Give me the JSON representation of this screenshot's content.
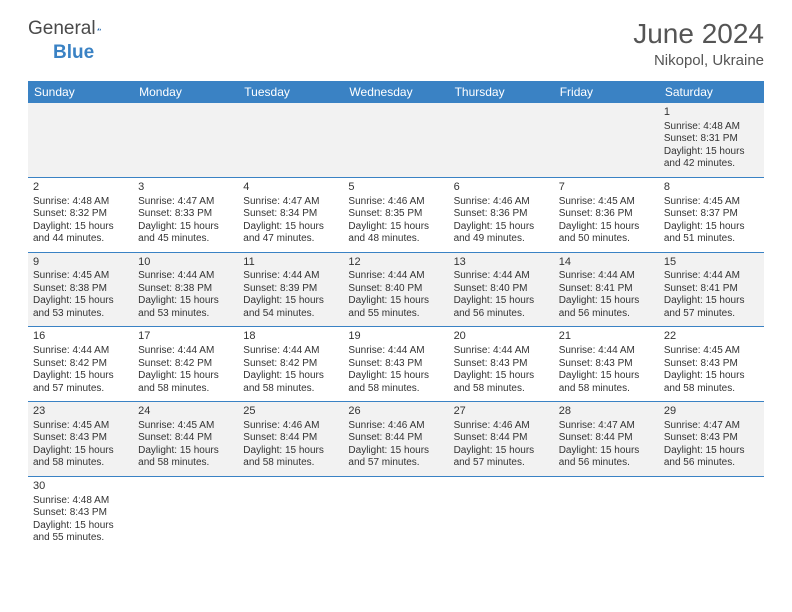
{
  "logo": {
    "text1": "General",
    "text2": "Blue",
    "icon_color": "#2f6fb0"
  },
  "title": "June 2024",
  "location": "Nikopol, Ukraine",
  "columns": [
    "Sunday",
    "Monday",
    "Tuesday",
    "Wednesday",
    "Thursday",
    "Friday",
    "Saturday"
  ],
  "header_bg": "#3a82c4",
  "weeks": [
    [
      null,
      null,
      null,
      null,
      null,
      null,
      {
        "d": "1",
        "sr": "4:48 AM",
        "ss": "8:31 PM",
        "dl": "15 hours and 42 minutes."
      }
    ],
    [
      {
        "d": "2",
        "sr": "4:48 AM",
        "ss": "8:32 PM",
        "dl": "15 hours and 44 minutes."
      },
      {
        "d": "3",
        "sr": "4:47 AM",
        "ss": "8:33 PM",
        "dl": "15 hours and 45 minutes."
      },
      {
        "d": "4",
        "sr": "4:47 AM",
        "ss": "8:34 PM",
        "dl": "15 hours and 47 minutes."
      },
      {
        "d": "5",
        "sr": "4:46 AM",
        "ss": "8:35 PM",
        "dl": "15 hours and 48 minutes."
      },
      {
        "d": "6",
        "sr": "4:46 AM",
        "ss": "8:36 PM",
        "dl": "15 hours and 49 minutes."
      },
      {
        "d": "7",
        "sr": "4:45 AM",
        "ss": "8:36 PM",
        "dl": "15 hours and 50 minutes."
      },
      {
        "d": "8",
        "sr": "4:45 AM",
        "ss": "8:37 PM",
        "dl": "15 hours and 51 minutes."
      }
    ],
    [
      {
        "d": "9",
        "sr": "4:45 AM",
        "ss": "8:38 PM",
        "dl": "15 hours and 53 minutes."
      },
      {
        "d": "10",
        "sr": "4:44 AM",
        "ss": "8:38 PM",
        "dl": "15 hours and 53 minutes."
      },
      {
        "d": "11",
        "sr": "4:44 AM",
        "ss": "8:39 PM",
        "dl": "15 hours and 54 minutes."
      },
      {
        "d": "12",
        "sr": "4:44 AM",
        "ss": "8:40 PM",
        "dl": "15 hours and 55 minutes."
      },
      {
        "d": "13",
        "sr": "4:44 AM",
        "ss": "8:40 PM",
        "dl": "15 hours and 56 minutes."
      },
      {
        "d": "14",
        "sr": "4:44 AM",
        "ss": "8:41 PM",
        "dl": "15 hours and 56 minutes."
      },
      {
        "d": "15",
        "sr": "4:44 AM",
        "ss": "8:41 PM",
        "dl": "15 hours and 57 minutes."
      }
    ],
    [
      {
        "d": "16",
        "sr": "4:44 AM",
        "ss": "8:42 PM",
        "dl": "15 hours and 57 minutes."
      },
      {
        "d": "17",
        "sr": "4:44 AM",
        "ss": "8:42 PM",
        "dl": "15 hours and 58 minutes."
      },
      {
        "d": "18",
        "sr": "4:44 AM",
        "ss": "8:42 PM",
        "dl": "15 hours and 58 minutes."
      },
      {
        "d": "19",
        "sr": "4:44 AM",
        "ss": "8:43 PM",
        "dl": "15 hours and 58 minutes."
      },
      {
        "d": "20",
        "sr": "4:44 AM",
        "ss": "8:43 PM",
        "dl": "15 hours and 58 minutes."
      },
      {
        "d": "21",
        "sr": "4:44 AM",
        "ss": "8:43 PM",
        "dl": "15 hours and 58 minutes."
      },
      {
        "d": "22",
        "sr": "4:45 AM",
        "ss": "8:43 PM",
        "dl": "15 hours and 58 minutes."
      }
    ],
    [
      {
        "d": "23",
        "sr": "4:45 AM",
        "ss": "8:43 PM",
        "dl": "15 hours and 58 minutes."
      },
      {
        "d": "24",
        "sr": "4:45 AM",
        "ss": "8:44 PM",
        "dl": "15 hours and 58 minutes."
      },
      {
        "d": "25",
        "sr": "4:46 AM",
        "ss": "8:44 PM",
        "dl": "15 hours and 58 minutes."
      },
      {
        "d": "26",
        "sr": "4:46 AM",
        "ss": "8:44 PM",
        "dl": "15 hours and 57 minutes."
      },
      {
        "d": "27",
        "sr": "4:46 AM",
        "ss": "8:44 PM",
        "dl": "15 hours and 57 minutes."
      },
      {
        "d": "28",
        "sr": "4:47 AM",
        "ss": "8:44 PM",
        "dl": "15 hours and 56 minutes."
      },
      {
        "d": "29",
        "sr": "4:47 AM",
        "ss": "8:43 PM",
        "dl": "15 hours and 56 minutes."
      }
    ],
    [
      {
        "d": "30",
        "sr": "4:48 AM",
        "ss": "8:43 PM",
        "dl": "15 hours and 55 minutes."
      },
      null,
      null,
      null,
      null,
      null,
      null
    ]
  ],
  "labels": {
    "sunrise": "Sunrise: ",
    "sunset": "Sunset: ",
    "daylight": "Daylight: "
  }
}
